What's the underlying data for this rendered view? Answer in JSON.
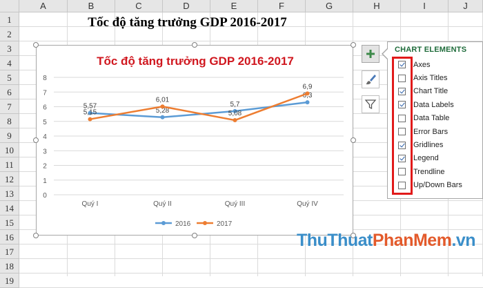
{
  "spreadsheet": {
    "columns": [
      "A",
      "B",
      "C",
      "D",
      "E",
      "F",
      "G",
      "H",
      "I",
      "J"
    ],
    "rows": [
      "1",
      "2",
      "3",
      "4",
      "5",
      "6",
      "7",
      "8",
      "9",
      "10",
      "11",
      "12",
      "13",
      "14",
      "15",
      "16",
      "17",
      "18",
      "19"
    ],
    "cell_title": "Tốc độ tăng trưởng GDP 2016-2017"
  },
  "chart": {
    "chart_data": {
      "type": "line",
      "title": "Tốc độ tăng trưởng GDP 2016-2017",
      "categories": [
        "Quý I",
        "Quý II",
        "Quý III",
        "Quý IV"
      ],
      "series": [
        {
          "name": "2016",
          "values": [
            5.57,
            5.28,
            5.7,
            6.3
          ],
          "labels": [
            "5,57",
            "5,28",
            "5,7",
            "6,3"
          ],
          "color": "#5b9bd5"
        },
        {
          "name": "2017",
          "values": [
            5.15,
            6.01,
            5.08,
            6.9
          ],
          "labels": [
            "5,15",
            "6,01",
            "5,08",
            "6,9"
          ],
          "color": "#ed7d31"
        }
      ],
      "yticks": [
        "0",
        "1",
        "2",
        "3",
        "4",
        "5",
        "6",
        "7",
        "8"
      ],
      "ylim": [
        0,
        8
      ],
      "grid": true,
      "legend": "bottom"
    },
    "title_color": "#d0171f"
  },
  "side_buttons": [
    {
      "name": "chart-elements-button",
      "icon": "plus-icon"
    },
    {
      "name": "chart-styles-button",
      "icon": "brush-icon"
    },
    {
      "name": "chart-filters-button",
      "icon": "filter-icon"
    }
  ],
  "panel": {
    "title": "CHART ELEMENTS",
    "items": [
      {
        "label": "Axes",
        "checked": true
      },
      {
        "label": "Axis Titles",
        "checked": false
      },
      {
        "label": "Chart Title",
        "checked": true
      },
      {
        "label": "Data Labels",
        "checked": true
      },
      {
        "label": "Data Table",
        "checked": false
      },
      {
        "label": "Error Bars",
        "checked": false
      },
      {
        "label": "Gridlines",
        "checked": true
      },
      {
        "label": "Legend",
        "checked": true
      },
      {
        "label": "Trendline",
        "checked": false
      },
      {
        "label": "Up/Down Bars",
        "checked": false
      }
    ]
  },
  "watermark": {
    "part1": "ThuThuat",
    "part2": "PhanMem",
    "part3": ".vn"
  }
}
